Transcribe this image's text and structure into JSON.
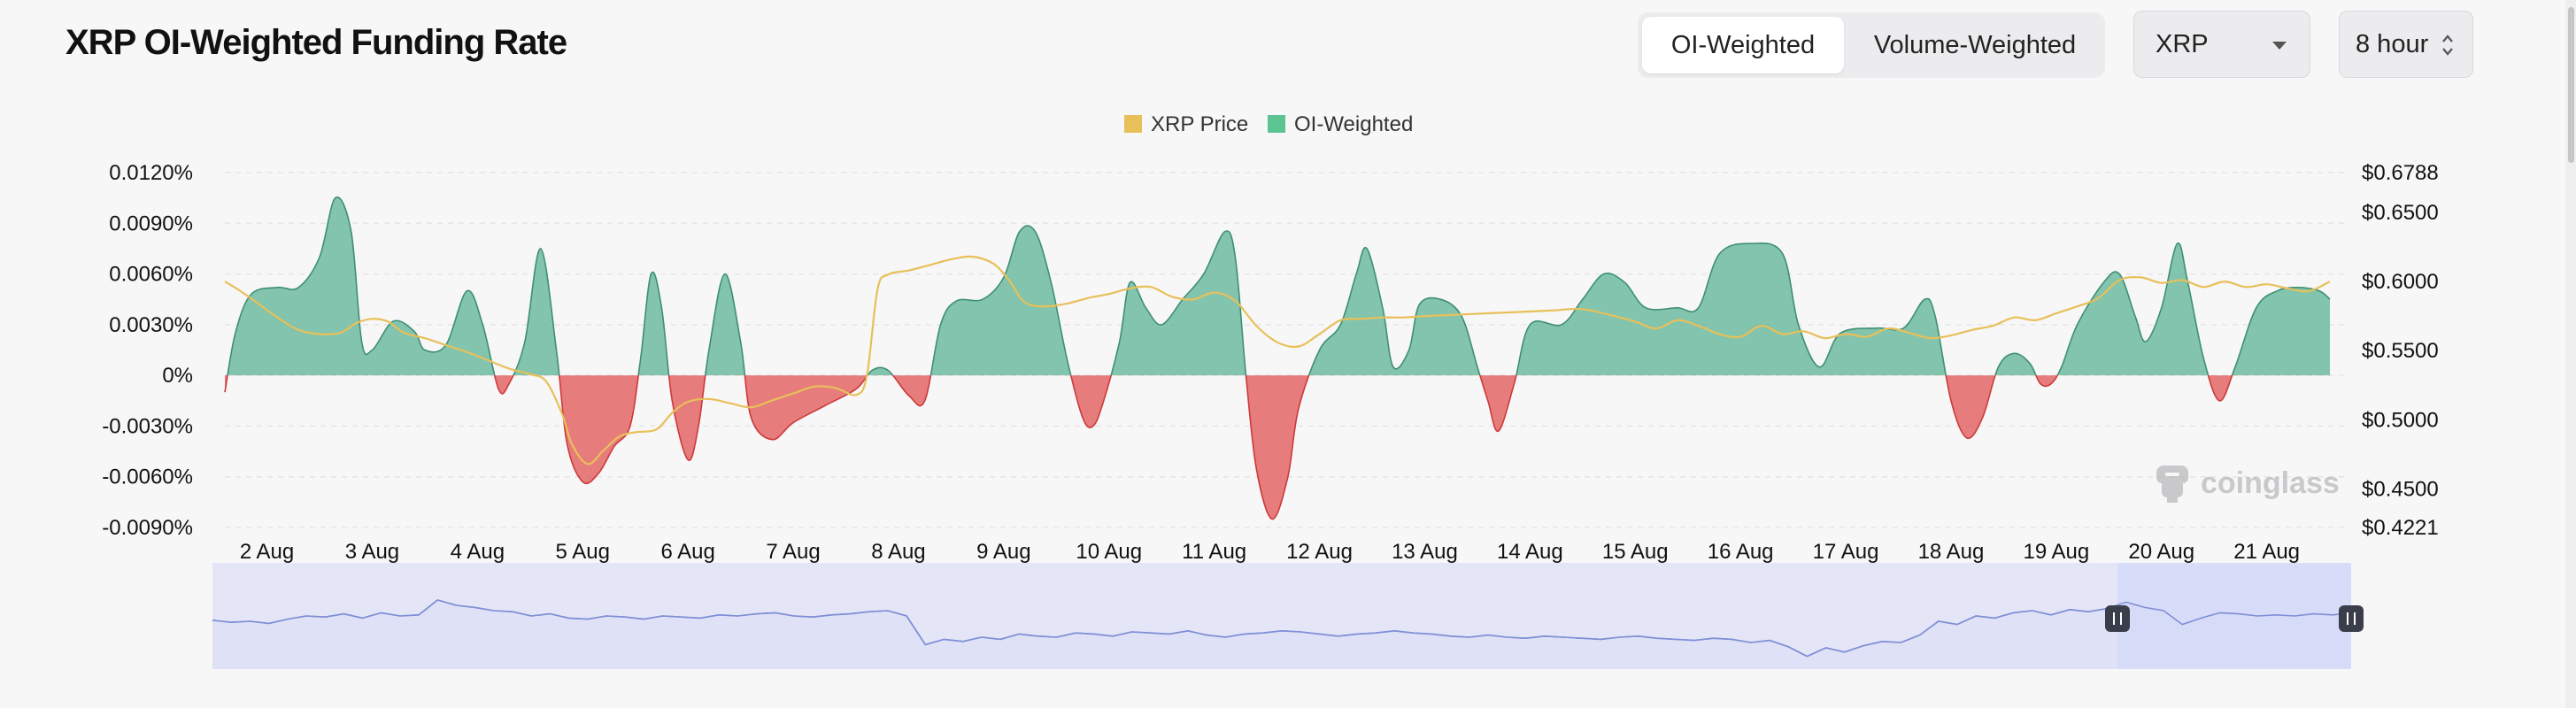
{
  "page": {
    "title": "XRP OI-Weighted Funding Rate"
  },
  "controls": {
    "tabs": [
      {
        "label": "OI-Weighted",
        "active": true
      },
      {
        "label": "Volume-Weighted",
        "active": false
      }
    ],
    "coin_select": {
      "value": "XRP"
    },
    "interval_select": {
      "value": "8 hour"
    }
  },
  "watermark": {
    "text": "coinglass"
  },
  "colors": {
    "positive": "#5bb394",
    "negative": "#e25c5c",
    "price_line": "#e8c05a",
    "legend_price": "#e8c05a",
    "legend_oi": "#5cc492",
    "navigator_line": "#7f8fd6",
    "navigator_fill": "#e4e6f7",
    "navigator_selected": "#d5dbf8"
  },
  "chart_data": {
    "type": "area",
    "title": "XRP OI-Weighted Funding Rate",
    "legend": [
      "XRP Price",
      "OI-Weighted"
    ],
    "legend_position": "top-center",
    "x_labels": [
      "2 Aug",
      "3 Aug",
      "4 Aug",
      "5 Aug",
      "6 Aug",
      "7 Aug",
      "8 Aug",
      "9 Aug",
      "10 Aug",
      "11 Aug",
      "12 Aug",
      "13 Aug",
      "14 Aug",
      "15 Aug",
      "16 Aug",
      "17 Aug",
      "18 Aug",
      "19 Aug",
      "20 Aug",
      "21 Aug"
    ],
    "x_range_days": [
      1.6,
      21.6
    ],
    "y_left": {
      "ticks": [
        0.012,
        0.009,
        0.006,
        0.003,
        0,
        -0.003,
        -0.006,
        -0.009
      ],
      "tick_labels": [
        "0.0120%",
        "0.0090%",
        "0.0060%",
        "0.0030%",
        "0%",
        "-0.0030%",
        "-0.0060%",
        "-0.0090%"
      ],
      "range": [
        -0.009,
        0.012
      ]
    },
    "y_right": {
      "tick_values": [
        0.6788,
        0.65,
        0.6,
        0.55,
        0.5,
        0.45,
        0.4221
      ],
      "tick_labels": [
        "$0.6788",
        "$0.6500",
        "$0.6000",
        "$0.5500",
        "$0.5000",
        "$0.4500",
        "$0.4221"
      ],
      "range": [
        0.4221,
        0.6788
      ]
    },
    "series": [
      {
        "name": "OI-Weighted",
        "unit": "% funding rate",
        "points": [
          [
            1.6,
            -0.001
          ],
          [
            1.7,
            0.0025
          ],
          [
            1.85,
            0.0048
          ],
          [
            2.1,
            0.0052
          ],
          [
            2.3,
            0.0052
          ],
          [
            2.5,
            0.007
          ],
          [
            2.65,
            0.0105
          ],
          [
            2.8,
            0.0085
          ],
          [
            2.9,
            0.002
          ],
          [
            3.0,
            0.0015
          ],
          [
            3.2,
            0.0032
          ],
          [
            3.4,
            0.0026
          ],
          [
            3.5,
            0.0015
          ],
          [
            3.7,
            0.0018
          ],
          [
            3.9,
            0.005
          ],
          [
            4.05,
            0.003
          ],
          [
            4.2,
            -0.0008
          ],
          [
            4.3,
            -0.0005
          ],
          [
            4.45,
            0.002
          ],
          [
            4.6,
            0.0075
          ],
          [
            4.75,
            0.0015
          ],
          [
            4.85,
            -0.004
          ],
          [
            5.0,
            -0.0063
          ],
          [
            5.15,
            -0.0058
          ],
          [
            5.3,
            -0.0042
          ],
          [
            5.45,
            -0.003
          ],
          [
            5.55,
            0.001
          ],
          [
            5.65,
            0.006
          ],
          [
            5.75,
            0.004
          ],
          [
            5.85,
            -0.0015
          ],
          [
            6.0,
            -0.005
          ],
          [
            6.1,
            -0.003
          ],
          [
            6.2,
            0.0015
          ],
          [
            6.35,
            0.006
          ],
          [
            6.5,
            0.002
          ],
          [
            6.6,
            -0.0025
          ],
          [
            6.8,
            -0.0038
          ],
          [
            7.0,
            -0.0028
          ],
          [
            7.3,
            -0.0018
          ],
          [
            7.6,
            -0.0008
          ],
          [
            7.75,
            0.0003
          ],
          [
            7.9,
            0.0003
          ],
          [
            8.1,
            -0.0012
          ],
          [
            8.25,
            -0.0015
          ],
          [
            8.4,
            0.003
          ],
          [
            8.55,
            0.0044
          ],
          [
            8.8,
            0.0045
          ],
          [
            9.0,
            0.0058
          ],
          [
            9.15,
            0.0085
          ],
          [
            9.3,
            0.0085
          ],
          [
            9.45,
            0.0055
          ],
          [
            9.6,
            0.001
          ],
          [
            9.75,
            -0.0025
          ],
          [
            9.85,
            -0.003
          ],
          [
            9.95,
            -0.0015
          ],
          [
            10.1,
            0.002
          ],
          [
            10.2,
            0.0055
          ],
          [
            10.35,
            0.004
          ],
          [
            10.5,
            0.003
          ],
          [
            10.7,
            0.0045
          ],
          [
            10.9,
            0.006
          ],
          [
            11.1,
            0.0085
          ],
          [
            11.2,
            0.007
          ],
          [
            11.3,
            0.0001
          ],
          [
            11.4,
            -0.0055
          ],
          [
            11.55,
            -0.0085
          ],
          [
            11.7,
            -0.006
          ],
          [
            11.8,
            -0.002
          ],
          [
            12.0,
            0.0015
          ],
          [
            12.2,
            0.003
          ],
          [
            12.35,
            0.006
          ],
          [
            12.45,
            0.0075
          ],
          [
            12.6,
            0.004
          ],
          [
            12.7,
            0.0005
          ],
          [
            12.85,
            0.0015
          ],
          [
            12.95,
            0.0042
          ],
          [
            13.15,
            0.0045
          ],
          [
            13.35,
            0.0035
          ],
          [
            13.5,
            0.0005
          ],
          [
            13.6,
            -0.0015
          ],
          [
            13.7,
            -0.0033
          ],
          [
            13.85,
            -0.0005
          ],
          [
            14.0,
            0.003
          ],
          [
            14.3,
            0.003
          ],
          [
            14.5,
            0.0045
          ],
          [
            14.7,
            0.006
          ],
          [
            14.9,
            0.0055
          ],
          [
            15.1,
            0.004
          ],
          [
            15.4,
            0.004
          ],
          [
            15.6,
            0.004
          ],
          [
            15.8,
            0.0072
          ],
          [
            16.1,
            0.0078
          ],
          [
            16.4,
            0.0072
          ],
          [
            16.55,
            0.003
          ],
          [
            16.75,
            0.0005
          ],
          [
            16.95,
            0.0025
          ],
          [
            17.3,
            0.0028
          ],
          [
            17.55,
            0.0028
          ],
          [
            17.75,
            0.0045
          ],
          [
            17.85,
            0.0035
          ],
          [
            18.0,
            -0.0015
          ],
          [
            18.15,
            -0.0037
          ],
          [
            18.3,
            -0.0025
          ],
          [
            18.45,
            0.0005
          ],
          [
            18.6,
            0.0013
          ],
          [
            18.75,
            0.0007
          ],
          [
            18.85,
            -0.0005
          ],
          [
            18.95,
            -0.0005
          ],
          [
            19.05,
            0.0005
          ],
          [
            19.2,
            0.003
          ],
          [
            19.45,
            0.0055
          ],
          [
            19.6,
            0.006
          ],
          [
            19.75,
            0.0035
          ],
          [
            19.85,
            0.002
          ],
          [
            20.0,
            0.004
          ],
          [
            20.15,
            0.0078
          ],
          [
            20.25,
            0.0055
          ],
          [
            20.4,
            0.001
          ],
          [
            20.55,
            -0.0015
          ],
          [
            20.7,
            0.0005
          ],
          [
            20.9,
            0.004
          ],
          [
            21.1,
            0.005
          ],
          [
            21.3,
            0.0052
          ],
          [
            21.5,
            0.005
          ],
          [
            21.6,
            0.0045
          ]
        ]
      },
      {
        "name": "XRP Price",
        "unit": "USD",
        "points": [
          [
            1.6,
            0.6
          ],
          [
            1.75,
            0.593
          ],
          [
            1.9,
            0.585
          ],
          [
            2.1,
            0.574
          ],
          [
            2.3,
            0.565
          ],
          [
            2.5,
            0.562
          ],
          [
            2.7,
            0.563
          ],
          [
            2.85,
            0.57
          ],
          [
            3.0,
            0.573
          ],
          [
            3.15,
            0.571
          ],
          [
            3.3,
            0.563
          ],
          [
            3.5,
            0.559
          ],
          [
            3.7,
            0.554
          ],
          [
            3.9,
            0.549
          ],
          [
            4.1,
            0.543
          ],
          [
            4.3,
            0.537
          ],
          [
            4.5,
            0.533
          ],
          [
            4.65,
            0.528
          ],
          [
            4.8,
            0.505
          ],
          [
            4.9,
            0.482
          ],
          [
            5.05,
            0.468
          ],
          [
            5.2,
            0.478
          ],
          [
            5.35,
            0.488
          ],
          [
            5.5,
            0.491
          ],
          [
            5.7,
            0.493
          ],
          [
            5.85,
            0.505
          ],
          [
            6.0,
            0.513
          ],
          [
            6.2,
            0.515
          ],
          [
            6.4,
            0.512
          ],
          [
            6.6,
            0.509
          ],
          [
            6.8,
            0.514
          ],
          [
            7.0,
            0.519
          ],
          [
            7.2,
            0.524
          ],
          [
            7.4,
            0.523
          ],
          [
            7.6,
            0.518
          ],
          [
            7.7,
            0.532
          ],
          [
            7.8,
            0.594
          ],
          [
            7.9,
            0.605
          ],
          [
            8.1,
            0.608
          ],
          [
            8.3,
            0.612
          ],
          [
            8.5,
            0.616
          ],
          [
            8.7,
            0.618
          ],
          [
            8.9,
            0.613
          ],
          [
            9.05,
            0.601
          ],
          [
            9.2,
            0.585
          ],
          [
            9.4,
            0.582
          ],
          [
            9.6,
            0.584
          ],
          [
            9.8,
            0.588
          ],
          [
            10.0,
            0.591
          ],
          [
            10.2,
            0.595
          ],
          [
            10.4,
            0.596
          ],
          [
            10.6,
            0.589
          ],
          [
            10.8,
            0.587
          ],
          [
            11.0,
            0.592
          ],
          [
            11.2,
            0.586
          ],
          [
            11.4,
            0.568
          ],
          [
            11.6,
            0.556
          ],
          [
            11.8,
            0.553
          ],
          [
            12.0,
            0.562
          ],
          [
            12.2,
            0.572
          ],
          [
            12.4,
            0.573
          ],
          [
            12.6,
            0.574
          ],
          [
            12.8,
            0.574
          ],
          [
            13.0,
            0.575
          ],
          [
            13.3,
            0.576
          ],
          [
            13.6,
            0.577
          ],
          [
            13.9,
            0.578
          ],
          [
            14.2,
            0.579
          ],
          [
            14.5,
            0.58
          ],
          [
            14.8,
            0.575
          ],
          [
            15.0,
            0.571
          ],
          [
            15.2,
            0.566
          ],
          [
            15.4,
            0.572
          ],
          [
            15.6,
            0.568
          ],
          [
            15.8,
            0.562
          ],
          [
            16.0,
            0.56
          ],
          [
            16.2,
            0.568
          ],
          [
            16.4,
            0.562
          ],
          [
            16.6,
            0.564
          ],
          [
            16.8,
            0.559
          ],
          [
            17.0,
            0.562
          ],
          [
            17.2,
            0.56
          ],
          [
            17.4,
            0.566
          ],
          [
            17.6,
            0.563
          ],
          [
            17.8,
            0.559
          ],
          [
            18.0,
            0.561
          ],
          [
            18.2,
            0.565
          ],
          [
            18.4,
            0.568
          ],
          [
            18.6,
            0.574
          ],
          [
            18.8,
            0.572
          ],
          [
            19.0,
            0.577
          ],
          [
            19.2,
            0.582
          ],
          [
            19.4,
            0.588
          ],
          [
            19.6,
            0.601
          ],
          [
            19.8,
            0.603
          ],
          [
            20.0,
            0.599
          ],
          [
            20.2,
            0.601
          ],
          [
            20.4,
            0.596
          ],
          [
            20.6,
            0.6
          ],
          [
            20.8,
            0.596
          ],
          [
            21.0,
            0.598
          ],
          [
            21.2,
            0.595
          ],
          [
            21.4,
            0.593
          ],
          [
            21.6,
            0.6
          ]
        ]
      }
    ],
    "navigator": {
      "selected_range_days": [
        19.6,
        21.8
      ],
      "values": [
        0.46,
        0.44,
        0.45,
        0.43,
        0.47,
        0.5,
        0.49,
        0.52,
        0.48,
        0.53,
        0.5,
        0.51,
        0.65,
        0.6,
        0.58,
        0.55,
        0.54,
        0.5,
        0.52,
        0.48,
        0.47,
        0.5,
        0.49,
        0.47,
        0.5,
        0.49,
        0.48,
        0.51,
        0.5,
        0.52,
        0.53,
        0.5,
        0.49,
        0.51,
        0.52,
        0.54,
        0.55,
        0.5,
        0.23,
        0.28,
        0.26,
        0.3,
        0.28,
        0.33,
        0.31,
        0.3,
        0.34,
        0.33,
        0.31,
        0.35,
        0.34,
        0.33,
        0.36,
        0.32,
        0.3,
        0.33,
        0.34,
        0.36,
        0.35,
        0.33,
        0.31,
        0.33,
        0.34,
        0.36,
        0.34,
        0.33,
        0.31,
        0.3,
        0.32,
        0.3,
        0.29,
        0.31,
        0.3,
        0.29,
        0.28,
        0.3,
        0.31,
        0.29,
        0.28,
        0.27,
        0.29,
        0.28,
        0.25,
        0.27,
        0.21,
        0.12,
        0.2,
        0.16,
        0.22,
        0.26,
        0.25,
        0.32,
        0.45,
        0.42,
        0.5,
        0.48,
        0.53,
        0.55,
        0.51,
        0.56,
        0.54,
        0.57,
        0.63,
        0.58,
        0.55,
        0.42,
        0.48,
        0.53,
        0.52,
        0.5,
        0.51,
        0.5,
        0.52,
        0.51,
        0.53
      ]
    }
  }
}
